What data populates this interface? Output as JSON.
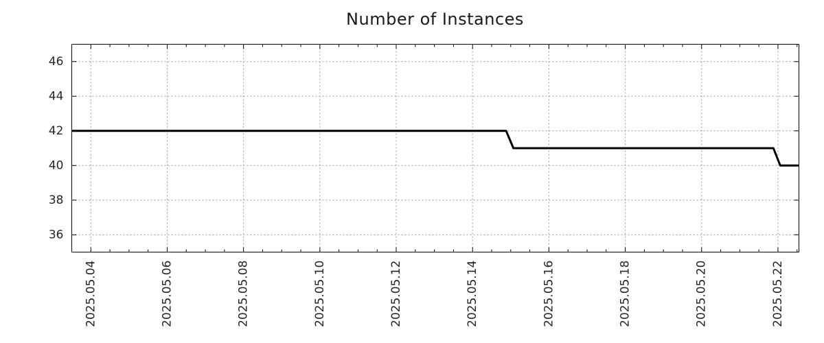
{
  "chart": {
    "title": "Number of Instances"
  },
  "chart_data": {
    "type": "line",
    "title": "Number of Instances",
    "xlabel": "",
    "ylabel": "",
    "legend": "none",
    "grid": {
      "visible": true,
      "style": "dotted",
      "color": "#9a9a9a"
    },
    "x_axis": {
      "unit": "date",
      "min_day_of_may_2025": 3.5,
      "max_day_of_may_2025": 22.55,
      "minor_tick_interval_days": 0.5,
      "tick_label_rotation_degrees": 90,
      "major_ticks": [
        {
          "day": 4,
          "label": "2025.05.04"
        },
        {
          "day": 6,
          "label": "2025.05.06"
        },
        {
          "day": 8,
          "label": "2025.05.08"
        },
        {
          "day": 10,
          "label": "2025.05.10"
        },
        {
          "day": 12,
          "label": "2025.05.12"
        },
        {
          "day": 14,
          "label": "2025.05.14"
        },
        {
          "day": 16,
          "label": "2025.05.16"
        },
        {
          "day": 18,
          "label": "2025.05.18"
        },
        {
          "day": 20,
          "label": "2025.05.20"
        },
        {
          "day": 22,
          "label": "2025.05.22"
        }
      ]
    },
    "y_axis": {
      "min": 35,
      "max": 47,
      "major_ticks": [
        36,
        38,
        40,
        42,
        44,
        46
      ]
    },
    "series": [
      {
        "name": "Number of Instances",
        "color": "#000000",
        "line_width": 3,
        "points": [
          {
            "date": "2025-05-03 12:00",
            "day": 3.5,
            "value": 42
          },
          {
            "date": "2025-05-14 21:00",
            "day": 14.88,
            "value": 42
          },
          {
            "date": "2025-05-15 02:00",
            "day": 15.07,
            "value": 41
          },
          {
            "date": "2025-05-21 21:00",
            "day": 21.88,
            "value": 41
          },
          {
            "date": "2025-05-22 01:30",
            "day": 22.06,
            "value": 40
          },
          {
            "date": "2025-05-22 13:00",
            "day": 22.55,
            "value": 40
          }
        ]
      }
    ]
  },
  "colors": {
    "line": "#000000",
    "text": "#1a1a1a",
    "tick_text": "#262626",
    "grid": "#9a9a9a",
    "frame": "#000000",
    "background": "#ffffff"
  }
}
